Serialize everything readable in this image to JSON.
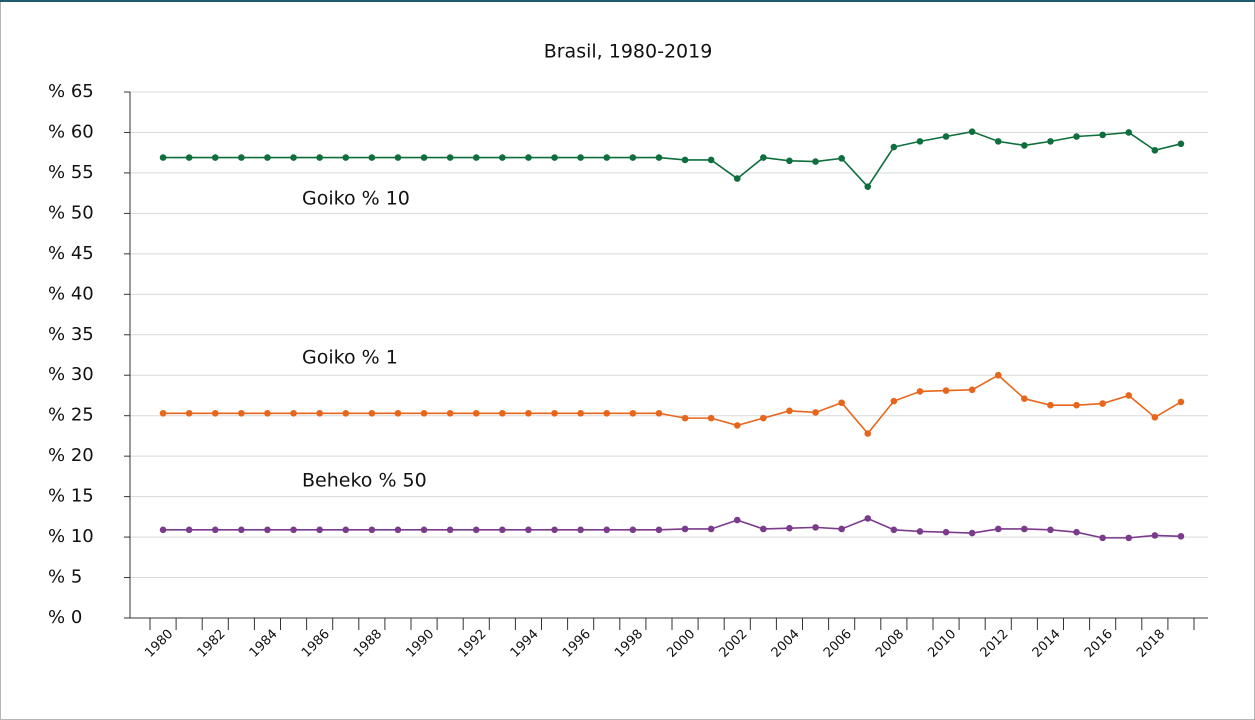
{
  "chart_data": {
    "type": "line",
    "title": "Brasil, 1980-2019",
    "categories": [
      "1980",
      null,
      "1982",
      null,
      "1984",
      null,
      "1986",
      null,
      "1988",
      null,
      "1990",
      null,
      "1992",
      null,
      "1994",
      null,
      "1996",
      null,
      "1998",
      null,
      "2000",
      null,
      "2002",
      null,
      "2004",
      null,
      "2006",
      null,
      "2008",
      null,
      "2010",
      null,
      "2012",
      null,
      "2014",
      null,
      "2016",
      null,
      "2018",
      null
    ],
    "series": [
      {
        "name": "Goiko % 10",
        "color": "#0e6e3c",
        "values": [
          56.9,
          56.9,
          56.9,
          56.9,
          56.9,
          56.9,
          56.9,
          56.9,
          56.9,
          56.9,
          56.9,
          56.9,
          56.9,
          56.9,
          56.9,
          56.9,
          56.9,
          56.9,
          56.9,
          56.9,
          56.6,
          56.6,
          54.3,
          56.9,
          56.5,
          56.4,
          56.8,
          53.3,
          58.2,
          58.9,
          59.5,
          60.1,
          58.9,
          58.4,
          58.9,
          59.5,
          59.7,
          60.0,
          57.8,
          58.6
        ]
      },
      {
        "name": "Goiko % 1",
        "color": "#e8661c",
        "values": [
          25.3,
          25.3,
          25.3,
          25.3,
          25.3,
          25.3,
          25.3,
          25.3,
          25.3,
          25.3,
          25.3,
          25.3,
          25.3,
          25.3,
          25.3,
          25.3,
          25.3,
          25.3,
          25.3,
          25.3,
          24.7,
          24.7,
          23.8,
          24.7,
          25.6,
          25.4,
          26.6,
          22.8,
          26.8,
          28.0,
          28.1,
          28.2,
          30.0,
          27.1,
          26.3,
          26.3,
          26.5,
          27.5,
          24.8,
          26.7
        ]
      },
      {
        "name": "Beheko % 50",
        "color": "#7b3b8c",
        "values": [
          10.9,
          10.9,
          10.9,
          10.9,
          10.9,
          10.9,
          10.9,
          10.9,
          10.9,
          10.9,
          10.9,
          10.9,
          10.9,
          10.9,
          10.9,
          10.9,
          10.9,
          10.9,
          10.9,
          10.9,
          11.0,
          11.0,
          12.1,
          11.0,
          11.1,
          11.2,
          11.0,
          12.3,
          10.9,
          10.7,
          10.6,
          10.5,
          11.0,
          11.0,
          10.9,
          10.6,
          9.9,
          9.9,
          10.2,
          10.1
        ]
      }
    ],
    "ylim": [
      0,
      65
    ],
    "yticks": [
      {
        "value": 0,
        "label": "% 0"
      },
      {
        "value": 5,
        "label": "% 5"
      },
      {
        "value": 10,
        "label": "% 10"
      },
      {
        "value": 15,
        "label": "% 15"
      },
      {
        "value": 20,
        "label": "% 20"
      },
      {
        "value": 25,
        "label": "% 25"
      },
      {
        "value": 30,
        "label": "% 30"
      },
      {
        "value": 35,
        "label": "% 35"
      },
      {
        "value": 40,
        "label": "% 40"
      },
      {
        "value": 45,
        "label": "% 45"
      },
      {
        "value": 50,
        "label": "% 50"
      },
      {
        "value": 55,
        "label": "% 55"
      },
      {
        "value": 60,
        "label": "% 60"
      },
      {
        "value": 65,
        "label": "% 65"
      }
    ],
    "grid": true
  }
}
